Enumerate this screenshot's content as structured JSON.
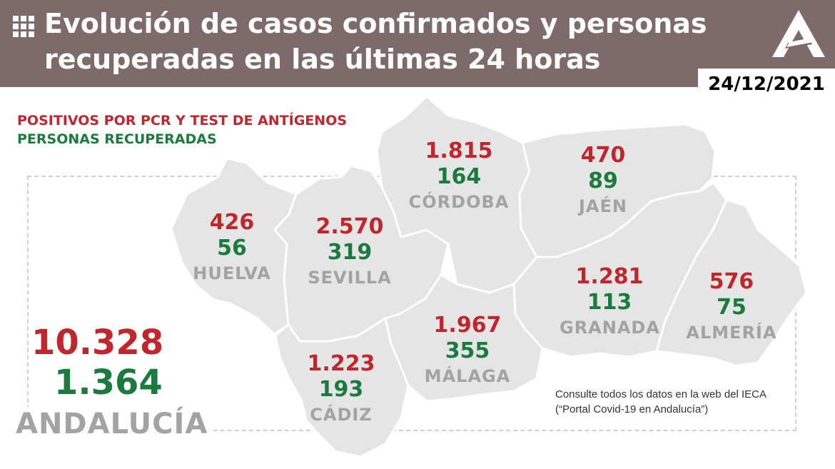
{
  "header": {
    "title": "Evolución de casos confirmados y personas recuperadas en las últimas 24 horas",
    "date": "24/12/2021"
  },
  "legend": {
    "positives": "POSITIVOS POR PCR Y TEST DE ANTÍGENOS",
    "recovered": "PERSONAS RECUPERADAS"
  },
  "provinces": [
    {
      "name": "HUELVA",
      "positives": "426",
      "recovered": "56"
    },
    {
      "name": "SEVILLA",
      "positives": "2.570",
      "recovered": "319"
    },
    {
      "name": "CÓRDOBA",
      "positives": "1.815",
      "recovered": "164"
    },
    {
      "name": "JAÉN",
      "positives": "470",
      "recovered": "89"
    },
    {
      "name": "GRANADA",
      "positives": "1.281",
      "recovered": "113"
    },
    {
      "name": "ALMERÍA",
      "positives": "576",
      "recovered": "75"
    },
    {
      "name": "MÁLAGA",
      "positives": "1.967",
      "recovered": "355"
    },
    {
      "name": "CÁDIZ",
      "positives": "1.223",
      "recovered": "193"
    }
  ],
  "total": {
    "name": "ANDALUCÍA",
    "positives": "10.328",
    "recovered": "1.364"
  },
  "footnote": "Consulte todos los datos en la web del IECA (“Portal Covid-19 en Andalucía”)",
  "colors": {
    "header_bg": "#7d6b6b",
    "positives": "#c0262d",
    "recovered": "#1b7a3e",
    "map_fill": "#e5e5e5",
    "map_border": "#ffffff",
    "province_label": "#a3a3a3"
  },
  "icons": {
    "menu": "grid-icon",
    "logo": "junta-andalucia-logo"
  }
}
